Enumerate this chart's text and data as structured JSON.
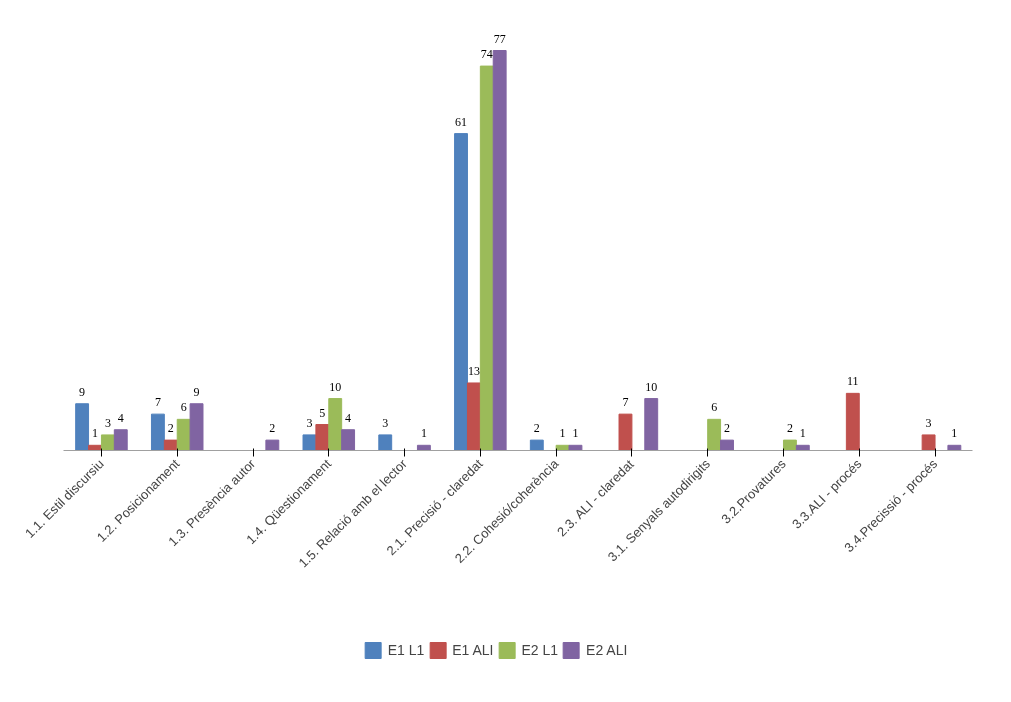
{
  "chart_data": {
    "type": "bar",
    "categories": [
      "1.1. Estil discursiu",
      "1.2. Posicionament",
      "1.3. Presència autor",
      "1.4. Qüestionament",
      "1.5. Relació amb el lector",
      "2.1. Precisió - claredat",
      "2.2. Cohesió/coherència",
      "2.3. ALI - claredat",
      "3.1. Senyals autodirigits",
      "3.2.Provatures",
      "3.3.ALI - procés",
      "3.4.Precissió - procés"
    ],
    "series": [
      {
        "name": "E1 L1",
        "color": "#4f81bd",
        "values": [
          9,
          7,
          null,
          3,
          3,
          61,
          2,
          null,
          null,
          null,
          null,
          null
        ]
      },
      {
        "name": "E1 ALI",
        "color": "#c0504d",
        "values": [
          1,
          2,
          null,
          5,
          null,
          13,
          null,
          7,
          null,
          null,
          11,
          3
        ]
      },
      {
        "name": "E2 L1",
        "color": "#9bbb59",
        "values": [
          3,
          6,
          null,
          10,
          null,
          74,
          1,
          null,
          6,
          2,
          null,
          null
        ]
      },
      {
        "name": "E2 ALI",
        "color": "#8064a2",
        "values": [
          4,
          9,
          2,
          4,
          1,
          77,
          1,
          10,
          2,
          1,
          null,
          1
        ]
      }
    ],
    "data_labels": true,
    "legend": "bottom",
    "grid": false
  }
}
